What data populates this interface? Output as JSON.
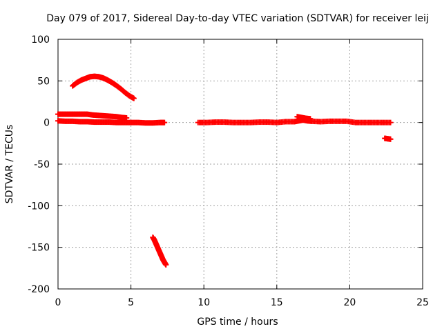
{
  "chart_data": {
    "type": "scatter",
    "title": "Day 079 of 2017, Sidereal Day-to-day VTEC variation (SDTVAR) for receiver leij",
    "xlabel": "GPS time / hours",
    "ylabel": "SDTVAR / TECUs",
    "xlim": [
      0,
      25
    ],
    "ylim": [
      -200,
      100
    ],
    "xticks": [
      0,
      5,
      10,
      15,
      20,
      25
    ],
    "yticks": [
      -200,
      -150,
      -100,
      -50,
      0,
      50,
      100
    ],
    "xtick_labels": [
      "0",
      "5",
      "10",
      "15",
      "20",
      "25"
    ],
    "ytick_labels": [
      "-200",
      "-150",
      "-100",
      "-50",
      "0",
      "50",
      "100"
    ],
    "grid": true,
    "marker": "+",
    "color": "#ff0000",
    "series": [
      {
        "points": [
          [
            1.0,
            44
          ],
          [
            1.3,
            48
          ],
          [
            1.6,
            51
          ],
          [
            1.9,
            53
          ],
          [
            2.2,
            55
          ],
          [
            2.5,
            55.5
          ],
          [
            2.8,
            55
          ],
          [
            3.1,
            53.5
          ],
          [
            3.4,
            51
          ],
          [
            3.7,
            48
          ],
          [
            4.0,
            44.5
          ],
          [
            4.3,
            40.5
          ],
          [
            4.6,
            36
          ],
          [
            4.9,
            32
          ],
          [
            5.2,
            29
          ]
        ]
      },
      {
        "points": [
          [
            0.0,
            10
          ],
          [
            0.4,
            10
          ],
          [
            0.8,
            10
          ],
          [
            1.2,
            10
          ],
          [
            1.6,
            10
          ],
          [
            2.0,
            10
          ],
          [
            2.4,
            9
          ],
          [
            2.8,
            8.5
          ],
          [
            3.2,
            8
          ],
          [
            3.6,
            7.5
          ],
          [
            4.0,
            7
          ],
          [
            4.4,
            6
          ],
          [
            4.7,
            5.5
          ]
        ]
      },
      {
        "points": [
          [
            0.0,
            2
          ],
          [
            0.5,
            1.5
          ],
          [
            1.0,
            1.5
          ],
          [
            1.5,
            1
          ],
          [
            2.0,
            1
          ],
          [
            2.5,
            0.5
          ],
          [
            3.0,
            0.5
          ],
          [
            3.5,
            0.5
          ],
          [
            4.0,
            0
          ],
          [
            4.5,
            0
          ],
          [
            5.0,
            0
          ],
          [
            5.5,
            0
          ],
          [
            6.0,
            -0.5
          ],
          [
            6.5,
            -0.5
          ],
          [
            7.0,
            0
          ],
          [
            7.3,
            0
          ]
        ]
      },
      {
        "points": [
          [
            6.5,
            -138
          ],
          [
            6.6,
            -141
          ],
          [
            6.7,
            -145
          ],
          [
            6.8,
            -149
          ],
          [
            6.9,
            -153
          ],
          [
            7.0,
            -157
          ],
          [
            7.1,
            -161
          ],
          [
            7.2,
            -165
          ],
          [
            7.3,
            -168
          ],
          [
            7.4,
            -171
          ]
        ]
      },
      {
        "points": [
          [
            9.6,
            0
          ],
          [
            10.2,
            0
          ],
          [
            10.8,
            0.5
          ],
          [
            11.4,
            0.5
          ],
          [
            12.0,
            0
          ],
          [
            12.6,
            0
          ],
          [
            13.2,
            0
          ],
          [
            13.8,
            0.5
          ],
          [
            14.4,
            0.5
          ],
          [
            15.0,
            0
          ],
          [
            15.6,
            1
          ],
          [
            16.2,
            1
          ],
          [
            16.5,
            2
          ],
          [
            16.8,
            3
          ],
          [
            17.1,
            2
          ],
          [
            17.4,
            1.5
          ],
          [
            18.0,
            1
          ],
          [
            18.6,
            1.5
          ],
          [
            19.2,
            1.5
          ],
          [
            19.8,
            1.5
          ],
          [
            20.4,
            0
          ],
          [
            21.0,
            0
          ],
          [
            21.6,
            0
          ],
          [
            22.2,
            0
          ],
          [
            22.8,
            0
          ]
        ]
      },
      {
        "points": [
          [
            16.4,
            7
          ],
          [
            16.7,
            6
          ],
          [
            17.0,
            5
          ],
          [
            17.3,
            4.5
          ]
        ]
      },
      {
        "points": [
          [
            22.4,
            -19
          ],
          [
            22.6,
            -19.5
          ],
          [
            22.8,
            -20
          ]
        ]
      }
    ]
  }
}
